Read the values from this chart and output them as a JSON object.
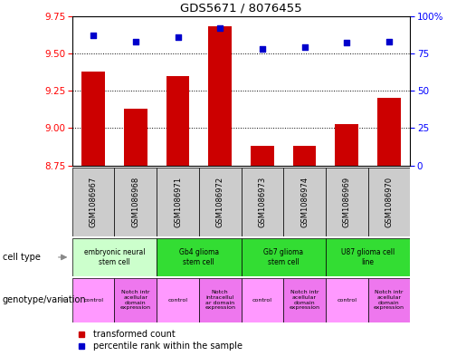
{
  "title": "GDS5671 / 8076455",
  "samples": [
    "GSM1086967",
    "GSM1086968",
    "GSM1086971",
    "GSM1086972",
    "GSM1086973",
    "GSM1086974",
    "GSM1086969",
    "GSM1086970"
  ],
  "transformed_count": [
    9.38,
    9.13,
    9.35,
    9.68,
    8.88,
    8.88,
    9.03,
    9.2
  ],
  "percentile_rank": [
    87,
    83,
    86,
    92,
    78,
    79,
    82,
    83
  ],
  "ylim_left": [
    8.75,
    9.75
  ],
  "ylim_right": [
    0,
    100
  ],
  "yticks_left": [
    8.75,
    9.0,
    9.25,
    9.5,
    9.75
  ],
  "yticks_right": [
    0,
    25,
    50,
    75,
    100
  ],
  "bar_color": "#cc0000",
  "dot_color": "#0000cc",
  "bar_bottom": 8.75,
  "cell_types": [
    {
      "label": "embryonic neural\nstem cell",
      "start": 0,
      "end": 2,
      "color": "#ccffcc"
    },
    {
      "label": "Gb4 glioma\nstem cell",
      "start": 2,
      "end": 4,
      "color": "#33dd33"
    },
    {
      "label": "Gb7 glioma\nstem cell",
      "start": 4,
      "end": 6,
      "color": "#33dd33"
    },
    {
      "label": "U87 glioma cell\nline",
      "start": 6,
      "end": 8,
      "color": "#33dd33"
    }
  ],
  "genotypes": [
    {
      "label": "control",
      "start": 0,
      "end": 1,
      "color": "#ff99ff"
    },
    {
      "label": "Notch intr\nacellular\ndomain\nexpression",
      "start": 1,
      "end": 2,
      "color": "#ee77ee"
    },
    {
      "label": "control",
      "start": 2,
      "end": 3,
      "color": "#ff99ff"
    },
    {
      "label": "Notch\nintracellul\nar domain\nexpression",
      "start": 3,
      "end": 4,
      "color": "#ee77ee"
    },
    {
      "label": "control",
      "start": 4,
      "end": 5,
      "color": "#ff99ff"
    },
    {
      "label": "Notch intr\nacellular\ndomain\nexpression",
      "start": 5,
      "end": 6,
      "color": "#ee77ee"
    },
    {
      "label": "control",
      "start": 6,
      "end": 7,
      "color": "#ff99ff"
    },
    {
      "label": "Notch intr\nacellular\ndomain\nexpression",
      "start": 7,
      "end": 8,
      "color": "#ee77ee"
    }
  ],
  "legend_red_label": "transformed count",
  "legend_blue_label": "percentile rank within the sample",
  "cell_type_label": "cell type",
  "genotype_label": "genotype/variation",
  "xtick_bg_color": "#cccccc",
  "background_color": "#ffffff"
}
